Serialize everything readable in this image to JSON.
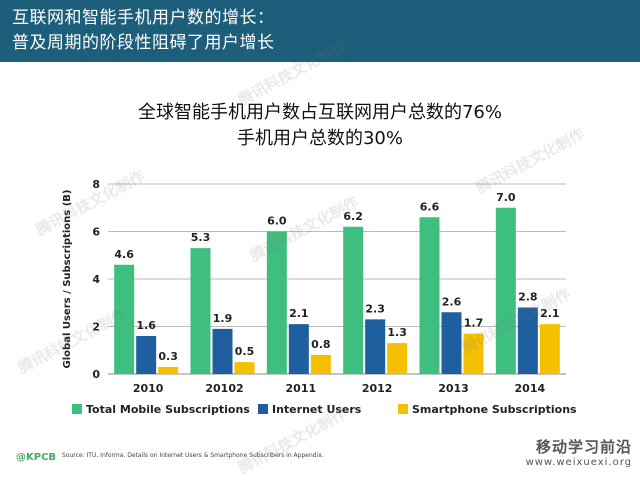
{
  "header": {
    "line1": "互联网和智能手机用户数的增长：",
    "line2": "普及周期的阶段性阻碍了用户增长"
  },
  "watermarks": [
    "腾讯科技文化制作",
    "腾讯科技文化制作",
    "腾讯科技文化制作",
    "腾讯科技文化制作",
    "腾讯科技文化制作",
    "腾讯科技文化制作",
    "腾讯科技文化制作"
  ],
  "footer": {
    "brand": "@KPCB",
    "source": "Source: ITU, Informa. Details on Internet Users & Smartphone Subscribers in Appendix.",
    "site_name": "移动学习前沿",
    "site_url": "www.weixuexi.org"
  },
  "colors": {
    "header_bg": "#1d5e7a",
    "total_mobile": "#3fbf7f",
    "internet": "#1f5f9f",
    "smartphone": "#f5c000"
  },
  "chart_data": {
    "type": "bar",
    "title": "全球智能手机用户数占互联网用户总数的76%\n手机用户总数的30%",
    "title_lines": [
      "全球智能手机用户数占互联网用户总数的76%",
      "手机用户总数的30%"
    ],
    "xlabel": "",
    "ylabel": "Global Users / Subscriptions (B)",
    "ylim": [
      0,
      8
    ],
    "yticks": [
      0,
      2,
      4,
      6,
      8
    ],
    "grid": true,
    "legend": "bottom",
    "categories": [
      "2010",
      "20102",
      "2011",
      "2012",
      "2013",
      "2014"
    ],
    "series": [
      {
        "name": "Total Mobile Subscriptions",
        "color": "#3fbf7f",
        "values": [
          4.6,
          5.3,
          6.0,
          6.2,
          6.6,
          7.0
        ],
        "labels": [
          "4.6",
          "5.3",
          "6.0",
          "6.2",
          "6.6",
          "7.0"
        ]
      },
      {
        "name": "Internet Users",
        "color": "#1f5f9f",
        "values": [
          1.6,
          1.9,
          2.1,
          2.3,
          2.6,
          2.8
        ],
        "labels": [
          "1.6",
          "1.9",
          "2.1",
          "2.3",
          "2.6",
          "2.8"
        ]
      },
      {
        "name": "Smartphone Subscriptions",
        "color": "#f5c000",
        "values": [
          0.3,
          0.5,
          0.8,
          1.3,
          1.7,
          2.1
        ],
        "labels": [
          "0.3",
          "0.5",
          "0.8",
          "1.3",
          "1.7",
          "2.1"
        ]
      }
    ]
  }
}
